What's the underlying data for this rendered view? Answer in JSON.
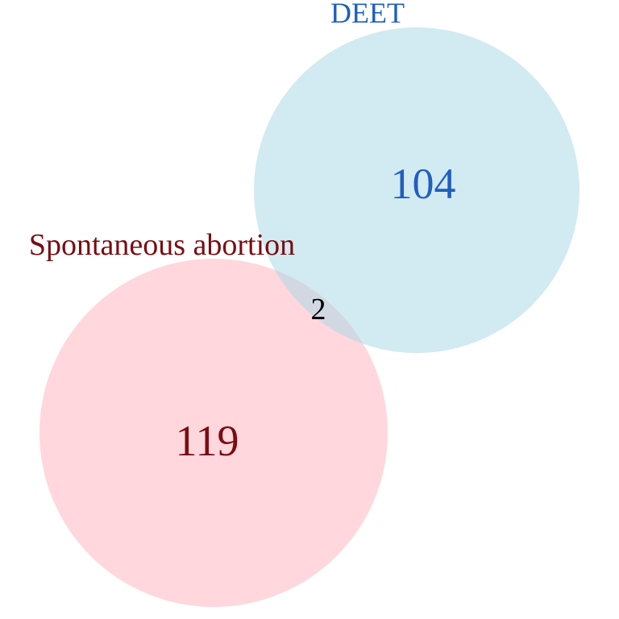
{
  "sets": [
    {
      "key": "deet",
      "label": "DEET",
      "only_count": "104",
      "fill_color": "#add8e6",
      "text_color": "#1f5fbf"
    },
    {
      "key": "spontaneous_abortion",
      "label": "Spontaneous abortion",
      "only_count": "119",
      "fill_color": "#ffb6c1",
      "text_color": "#7a0c12"
    }
  ],
  "intersection": {
    "count": "2",
    "text_color": "#000000"
  },
  "fill_opacity": 0.55
}
